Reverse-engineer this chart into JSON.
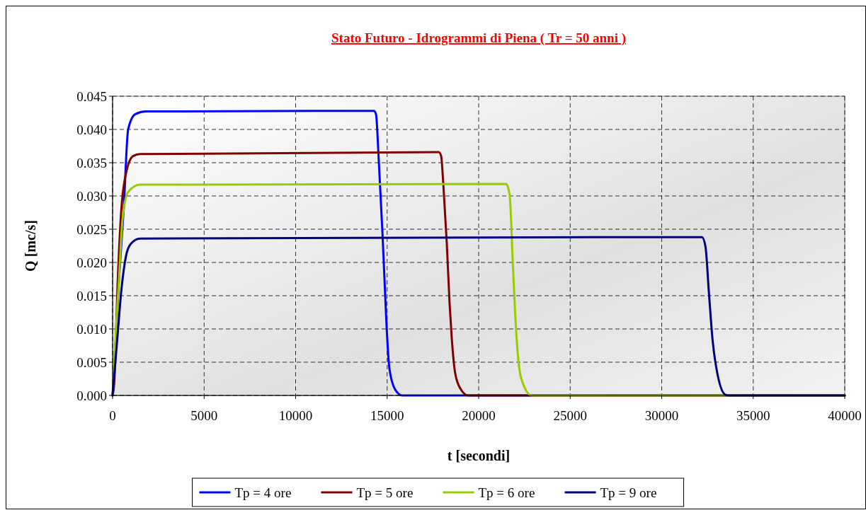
{
  "chart_data": {
    "type": "line",
    "title": "Stato Futuro - Idrogrammi di Piena ( Tr = 50 anni )",
    "xlabel": "t [secondi]",
    "ylabel": "Q [mc/s]",
    "xlim": [
      0,
      40000
    ],
    "xticks": [
      0,
      5000,
      10000,
      15000,
      20000,
      25000,
      30000,
      35000,
      40000
    ],
    "ylim": [
      0,
      0.045
    ],
    "yticks": [
      {
        "value": 0,
        "label": "0.000"
      },
      {
        "value": 0.005,
        "label": "0.005"
      },
      {
        "value": 0.01,
        "label": "0.010"
      },
      {
        "value": 0.015,
        "label": "0.015"
      },
      {
        "value": 0.02,
        "label": "0.020"
      },
      {
        "value": 0.025,
        "label": "0.025"
      },
      {
        "value": 0.03,
        "label": "0.030"
      },
      {
        "value": 0.035,
        "label": "0.035"
      },
      {
        "value": 0.04,
        "label": "0.040"
      },
      {
        "value": 0.045,
        "label": "0.045"
      }
    ],
    "grid": true,
    "legend": "bottom",
    "marker": "none",
    "line_style": "solid",
    "series": [
      {
        "name": "Tp = 4 ore",
        "color": "#0000ff",
        "x": [
          0,
          350,
          607,
          850,
          1240,
          1820,
          14275,
          14390,
          14545,
          14740,
          14855,
          14970,
          15125,
          15435,
          15820,
          40000
        ],
        "values": [
          0,
          0.0175,
          0.028,
          0.04,
          0.0423,
          0.0427,
          0.0428,
          0.0423,
          0.0352,
          0.0246,
          0.0175,
          0.0104,
          0.004,
          0.0009,
          0,
          0
        ]
      },
      {
        "name": "Tp = 5 ore",
        "color": "#800000",
        "x": [
          0,
          90,
          285,
          478,
          735,
          1120,
          1500,
          17820,
          17950,
          18070,
          18260,
          18410,
          18530,
          18720,
          19030,
          19420,
          40000
        ],
        "values": [
          0,
          0.0019,
          0.0175,
          0.028,
          0.0334,
          0.036,
          0.0363,
          0.0366,
          0.036,
          0.0317,
          0.0228,
          0.0139,
          0.0086,
          0.0033,
          0.0009,
          0,
          0
        ]
      },
      {
        "name": "Tp = 6 ore",
        "color": "#99cc00",
        "x": [
          0,
          90,
          350,
          540,
          850,
          1500,
          21500,
          21690,
          21880,
          22080,
          22320,
          22900,
          40000
        ],
        "values": [
          0,
          0.0051,
          0.0175,
          0.0264,
          0.0306,
          0.0317,
          0.0318,
          0.0302,
          0.0189,
          0.0083,
          0.0026,
          0,
          0
        ]
      },
      {
        "name": "Tp = 9 ore",
        "color": "#000080",
        "x": [
          0,
          283,
          475,
          735,
          993,
          1500,
          32200,
          32390,
          32580,
          32780,
          33040,
          33490,
          33700,
          40000
        ],
        "values": [
          0,
          0.0094,
          0.0157,
          0.021,
          0.0228,
          0.0236,
          0.0238,
          0.0224,
          0.0154,
          0.0083,
          0.0033,
          0.0001,
          0,
          0
        ]
      }
    ]
  }
}
